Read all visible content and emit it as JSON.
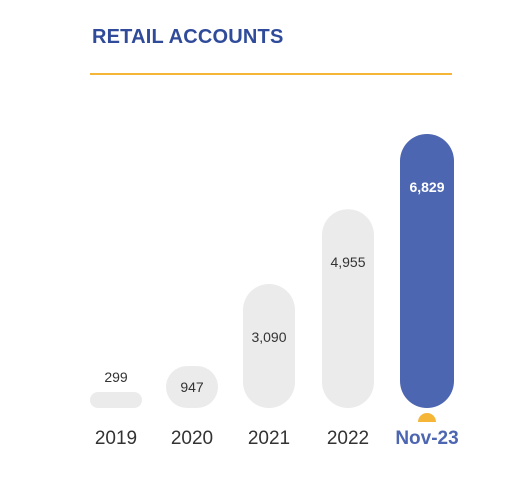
{
  "colors": {
    "accent": "#f5b537",
    "highlight": "#4d66b1",
    "bar": "#ebebeb",
    "title": "#2f4b9a",
    "text": "#333333",
    "value_on_highlight": "#ffffff"
  },
  "chart_data": {
    "type": "bar",
    "title": "RETAIL ACCOUNTS",
    "categories": [
      "2019",
      "2020",
      "2021",
      "2022",
      "Nov-23"
    ],
    "values": [
      299,
      947,
      3090,
      4955,
      6829
    ],
    "value_labels": [
      "299",
      "947",
      "3,090",
      "4,955",
      "6,829"
    ],
    "highlight_index": 4,
    "grid": false,
    "legend": "none"
  }
}
